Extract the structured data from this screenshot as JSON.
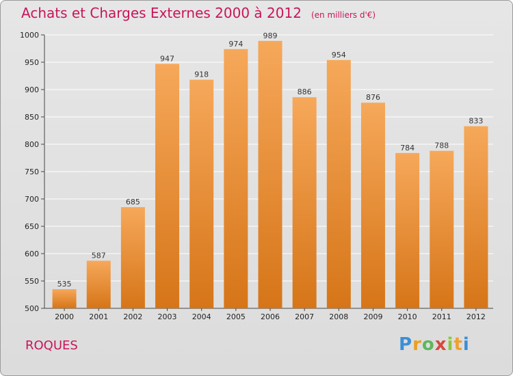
{
  "header": {
    "title": "Achats et Charges Externes 2000 à 2012",
    "unit": "(en milliers d'€)"
  },
  "footer": {
    "commune": "ROQUES",
    "logo": "Proxiti"
  },
  "colors": {
    "title": "#c8155a",
    "bar_top": "#f6a85a",
    "bar_bottom": "#d67518",
    "grid": "#ffffff"
  },
  "chart_data": {
    "type": "bar",
    "title": "Achats et Charges Externes 2000 à 2012",
    "xlabel": "",
    "ylabel": "",
    "categories": [
      "2000",
      "2001",
      "2002",
      "2003",
      "2004",
      "2005",
      "2006",
      "2007",
      "2008",
      "2009",
      "2010",
      "2011",
      "2012"
    ],
    "values": [
      535,
      587,
      685,
      947,
      918,
      974,
      989,
      886,
      954,
      876,
      784,
      788,
      833
    ],
    "ylim": [
      500,
      1000
    ],
    "yticks": [
      500,
      550,
      600,
      650,
      700,
      750,
      800,
      850,
      900,
      950,
      1000
    ],
    "grid": true,
    "legend": "none"
  }
}
